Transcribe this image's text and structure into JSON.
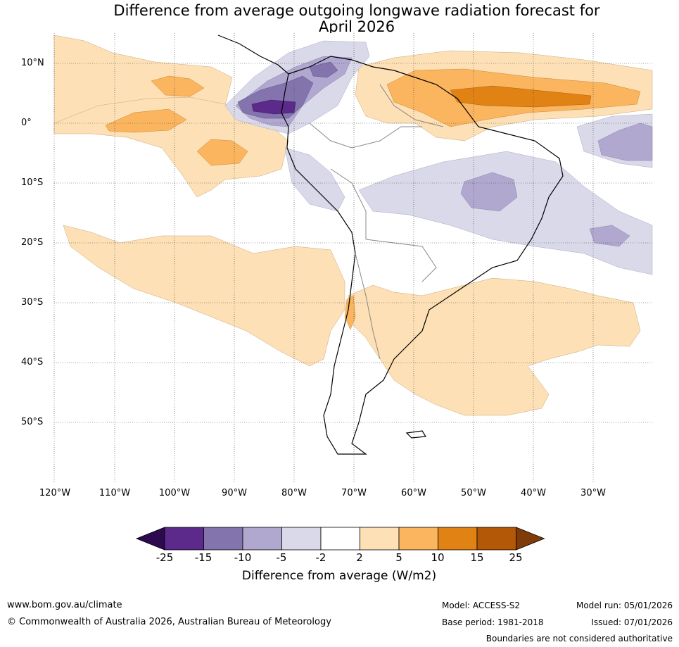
{
  "title_line1": "Difference from average outgoing longwave radiation forecast for",
  "title_line2": "April 2026",
  "lat_labels": [
    "10°N",
    "0°",
    "10°S",
    "20°S",
    "30°S",
    "40°S",
    "50°S"
  ],
  "lon_labels": [
    "120°W",
    "110°W",
    "100°W",
    "90°W",
    "80°W",
    "70°W",
    "60°W",
    "50°W",
    "40°W",
    "30°W"
  ],
  "colorbar": {
    "ticks": [
      "-25",
      "-15",
      "-10",
      "-5",
      "-2",
      "2",
      "5",
      "10",
      "15",
      "25"
    ],
    "colors": [
      "#2d0a4f",
      "#5b2a8a",
      "#8474ad",
      "#b0a8cf",
      "#d9d9ea",
      "#ffffff",
      "#fde0b5",
      "#fbb55f",
      "#e08214",
      "#b35806",
      "#7f3b08"
    ],
    "label": "Difference from average (W/m2)"
  },
  "footer": {
    "website": "www.bom.gov.au/climate",
    "copyright": "© Commonwealth of Australia 2026, Australian Bureau of Meteorology",
    "model": "Model: ACCESS-S2",
    "base_period": "Base period: 1981-2018",
    "model_run": "Model run: 05/01/2026",
    "issued": "Issued: 07/01/2026",
    "disclaimer": "Boundaries are not considered authoritative"
  }
}
